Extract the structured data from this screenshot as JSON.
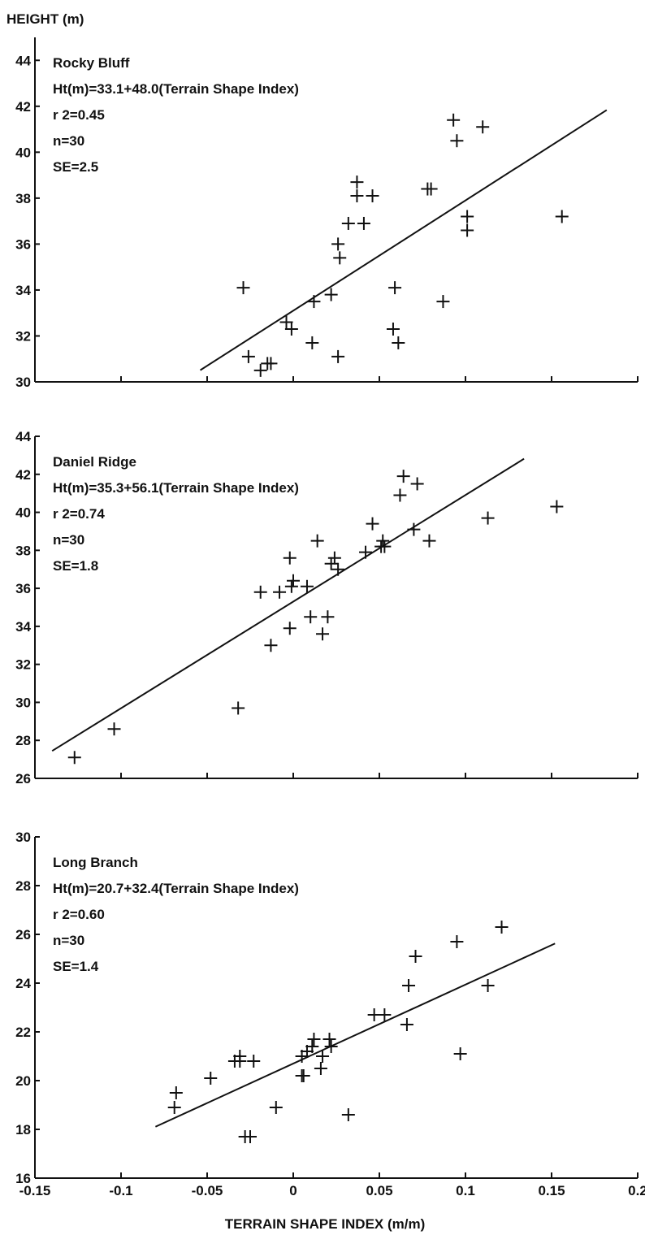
{
  "chart_data": [
    {
      "type": "scatter",
      "id": "rocky",
      "ylabel": "HEIGHT (m)",
      "xlabel": "",
      "xlim": [
        -0.15,
        0.2
      ],
      "ylim": [
        30,
        45
      ],
      "yticks": [
        30,
        32,
        34,
        36,
        38,
        40,
        42,
        44
      ],
      "xticks": [],
      "annotations": [
        "Rocky Bluff",
        "Ht(m)=33.1+48.0(Terrain Shape Index)",
        "r 2=0.45",
        "n=30",
        "SE=2.5"
      ],
      "fit": {
        "intercept": 33.1,
        "slope": 48.0,
        "x_range": [
          -0.054,
          0.182
        ]
      },
      "points": [
        [
          -0.029,
          34.1
        ],
        [
          -0.026,
          31.1
        ],
        [
          -0.019,
          30.5
        ],
        [
          -0.015,
          30.8
        ],
        [
          -0.013,
          30.8
        ],
        [
          -0.004,
          32.6
        ],
        [
          -0.001,
          32.3
        ],
        [
          0.012,
          33.5
        ],
        [
          0.011,
          31.7
        ],
        [
          0.022,
          33.8
        ],
        [
          0.026,
          36.0
        ],
        [
          0.027,
          35.4
        ],
        [
          0.026,
          31.1
        ],
        [
          0.032,
          36.9
        ],
        [
          0.037,
          38.7
        ],
        [
          0.037,
          38.1
        ],
        [
          0.041,
          36.9
        ],
        [
          0.046,
          38.1
        ],
        [
          0.058,
          32.3
        ],
        [
          0.059,
          34.1
        ],
        [
          0.061,
          31.7
        ],
        [
          0.078,
          38.4
        ],
        [
          0.08,
          38.4
        ],
        [
          0.087,
          33.5
        ],
        [
          0.093,
          41.4
        ],
        [
          0.095,
          40.5
        ],
        [
          0.101,
          37.2
        ],
        [
          0.101,
          36.6
        ],
        [
          0.11,
          41.1
        ],
        [
          0.156,
          37.2
        ]
      ]
    },
    {
      "type": "scatter",
      "id": "daniel",
      "ylabel": "",
      "xlabel": "",
      "xlim": [
        -0.15,
        0.2
      ],
      "ylim": [
        26,
        44
      ],
      "yticks": [
        26,
        28,
        30,
        32,
        34,
        36,
        38,
        40,
        42,
        44
      ],
      "xticks": [],
      "annotations": [
        "Daniel Ridge",
        "Ht(m)=35.3+56.1(Terrain Shape Index)",
        "r 2=0.74",
        "n=30",
        "SE=1.8"
      ],
      "fit": {
        "intercept": 35.3,
        "slope": 56.1,
        "x_range": [
          -0.14,
          0.134
        ]
      },
      "points": [
        [
          -0.127,
          27.1
        ],
        [
          -0.104,
          28.6
        ],
        [
          -0.032,
          29.7
        ],
        [
          -0.019,
          35.8
        ],
        [
          -0.008,
          35.8
        ],
        [
          -0.013,
          33.0
        ],
        [
          -0.002,
          37.6
        ],
        [
          -0.002,
          33.9
        ],
        [
          0.0,
          36.4
        ],
        [
          -0.001,
          36.1
        ],
        [
          0.008,
          36.1
        ],
        [
          0.01,
          34.5
        ],
        [
          0.014,
          38.5
        ],
        [
          0.017,
          33.6
        ],
        [
          0.02,
          34.5
        ],
        [
          0.022,
          37.3
        ],
        [
          0.024,
          37.6
        ],
        [
          0.026,
          37.0
        ],
        [
          0.042,
          37.9
        ],
        [
          0.046,
          39.4
        ],
        [
          0.051,
          38.2
        ],
        [
          0.052,
          38.5
        ],
        [
          0.053,
          38.2
        ],
        [
          0.062,
          40.9
        ],
        [
          0.064,
          41.9
        ],
        [
          0.07,
          39.1
        ],
        [
          0.072,
          41.5
        ],
        [
          0.079,
          38.5
        ],
        [
          0.113,
          39.7
        ],
        [
          0.153,
          40.3
        ]
      ]
    },
    {
      "type": "scatter",
      "id": "long",
      "ylabel": "",
      "xlabel": "TERRAIN SHAPE INDEX (m/m)",
      "xlim": [
        -0.15,
        0.2
      ],
      "ylim": [
        16,
        30
      ],
      "yticks": [
        16,
        18,
        20,
        22,
        24,
        26,
        28,
        30
      ],
      "xticks": [
        "-0.15",
        "-0.1",
        "-0.05",
        "0",
        "0.05",
        "0.1",
        "0.15",
        "0.2"
      ],
      "annotations": [
        "Long Branch",
        "Ht(m)=20.7+32.4(Terrain Shape Index)",
        "r 2=0.60",
        "n=30",
        "SE=1.4"
      ],
      "fit": {
        "intercept": 20.7,
        "slope": 32.4,
        "x_range": [
          -0.08,
          0.152
        ]
      },
      "points": [
        [
          -0.068,
          19.5
        ],
        [
          -0.069,
          18.9
        ],
        [
          -0.048,
          20.1
        ],
        [
          -0.034,
          20.8
        ],
        [
          -0.031,
          21.0
        ],
        [
          -0.031,
          20.8
        ],
        [
          -0.023,
          20.8
        ],
        [
          -0.028,
          17.7
        ],
        [
          -0.025,
          17.7
        ],
        [
          -0.01,
          18.9
        ],
        [
          0.005,
          21.0
        ],
        [
          0.005,
          20.2
        ],
        [
          0.006,
          20.2
        ],
        [
          0.008,
          21.2
        ],
        [
          0.011,
          21.4
        ],
        [
          0.012,
          21.7
        ],
        [
          0.016,
          20.5
        ],
        [
          0.017,
          21.0
        ],
        [
          0.021,
          21.7
        ],
        [
          0.022,
          21.4
        ],
        [
          0.032,
          18.6
        ],
        [
          0.047,
          22.7
        ],
        [
          0.053,
          22.7
        ],
        [
          0.066,
          22.3
        ],
        [
          0.067,
          23.9
        ],
        [
          0.071,
          25.1
        ],
        [
          0.095,
          25.7
        ],
        [
          0.097,
          21.1
        ],
        [
          0.113,
          23.9
        ],
        [
          0.121,
          26.3
        ]
      ]
    }
  ]
}
